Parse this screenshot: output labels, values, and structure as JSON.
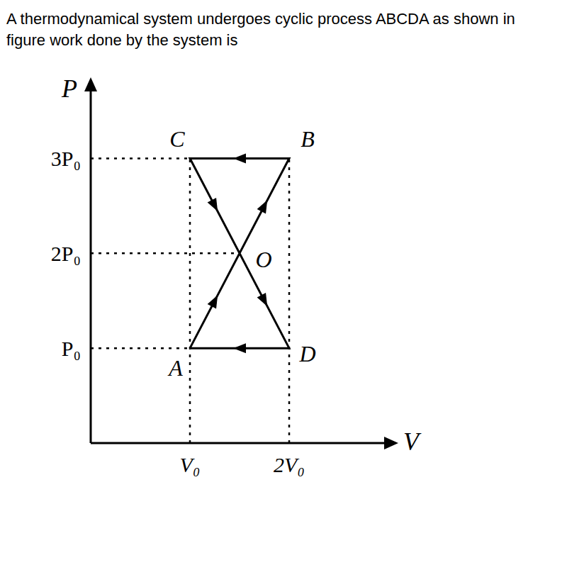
{
  "chart_data": {
    "type": "line",
    "title": "A thermodynamical system undergoes cyclic process ABCDA as shown in figure work done by the system is",
    "x_label": "V",
    "y_label": "P",
    "x": [
      1,
      2,
      1,
      2,
      1
    ],
    "values": [
      1,
      3,
      3,
      1,
      1
    ],
    "point_labels": [
      "A",
      "B",
      "C",
      "D",
      null
    ],
    "annotations": [
      {
        "text": "O",
        "x": 1.5,
        "y": 2
      }
    ],
    "color": "#000000",
    "line_style": "solid",
    "xlim": [
      0,
      3
    ],
    "ylim": [
      0,
      3.75
    ],
    "xticks": [
      {
        "value": 1,
        "label": "V₀"
      },
      {
        "value": 2,
        "label": "2V₀"
      }
    ],
    "yticks": [
      {
        "value": 1,
        "label": "P₀"
      },
      {
        "value": 2,
        "label": "2P₀"
      },
      {
        "value": 3,
        "label": "3P₀"
      }
    ],
    "grid": false
  }
}
